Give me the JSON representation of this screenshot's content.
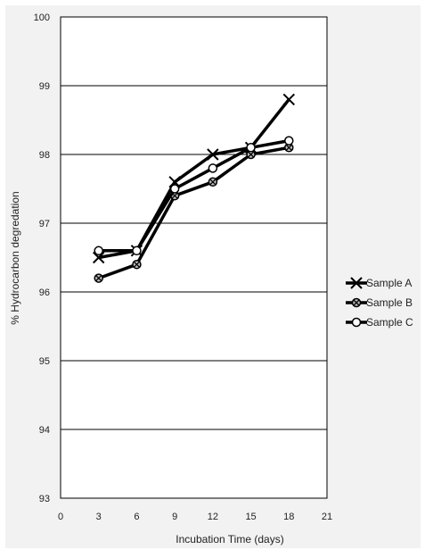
{
  "chart_data": {
    "type": "line",
    "xlabel": "Incubation Time (days)",
    "ylabel": "% Hydrocarbon degredation",
    "xlim": [
      0,
      21
    ],
    "ylim": [
      93,
      100
    ],
    "xticks": [
      0,
      3,
      6,
      9,
      12,
      15,
      18,
      21
    ],
    "yticks": [
      93,
      94,
      95,
      96,
      97,
      98,
      99,
      100
    ],
    "grid": "horizontal",
    "legend_position": "right",
    "x": [
      3,
      6,
      9,
      12,
      15,
      18
    ],
    "series": [
      {
        "name": "Sample A",
        "marker": "x",
        "color": "#000000",
        "values": [
          96.5,
          96.6,
          97.6,
          98.0,
          98.1,
          98.8
        ]
      },
      {
        "name": "Sample B",
        "marker": "circle-x",
        "color": "#000000",
        "values": [
          96.2,
          96.4,
          97.4,
          97.6,
          98.0,
          98.1
        ]
      },
      {
        "name": "Sample C",
        "marker": "circle",
        "color": "#000000",
        "values": [
          96.6,
          96.6,
          97.5,
          97.8,
          98.1,
          98.2
        ]
      }
    ]
  }
}
